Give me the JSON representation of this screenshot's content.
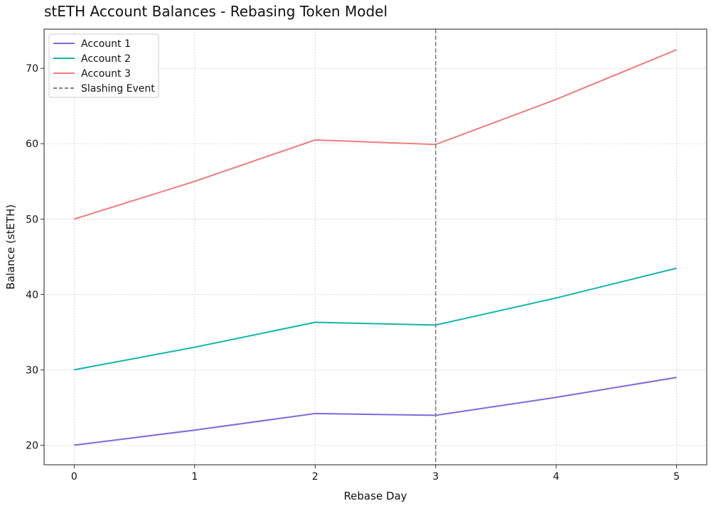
{
  "chart_data": {
    "type": "line",
    "title": "stETH Account Balances - Rebasing Token Model",
    "xlabel": "Rebase Day",
    "ylabel": "Balance (stETH)",
    "x": [
      0,
      1,
      2,
      3,
      4,
      5
    ],
    "xticks": [
      "0",
      "1",
      "2",
      "3",
      "4",
      "5"
    ],
    "yticks": [
      20,
      30,
      40,
      50,
      60,
      70
    ],
    "xlim": [
      -0.25,
      5.25
    ],
    "ylim": [
      17.4,
      75.2
    ],
    "grid": true,
    "legend_position": "top-left",
    "series": [
      {
        "name": "Account 1",
        "color": "#7b6ae0",
        "values": [
          20,
          22,
          24.2,
          23.96,
          26.35,
          28.99
        ]
      },
      {
        "name": "Account 2",
        "color": "#10b5a8",
        "values": [
          30,
          33,
          36.3,
          35.94,
          39.53,
          43.48
        ]
      },
      {
        "name": "Account 3",
        "color": "#f07c7c",
        "values": [
          50,
          55,
          60.5,
          59.9,
          65.88,
          72.47
        ]
      }
    ],
    "vline": {
      "name": "Slashing Event",
      "x": 3,
      "color": "#808080",
      "style": "dashed"
    }
  }
}
